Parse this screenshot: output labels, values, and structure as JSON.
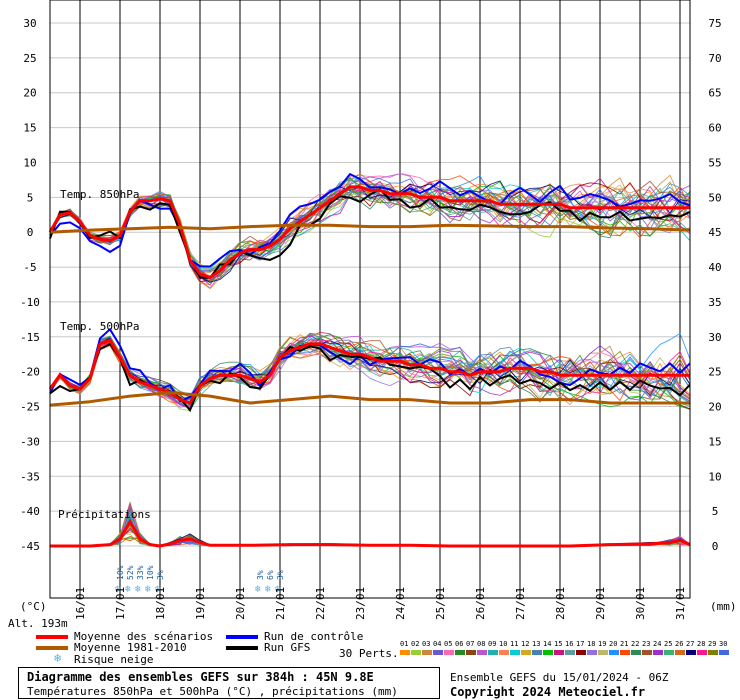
{
  "chart_data": {
    "type": "line",
    "title": "Diagramme des ensembles GEFS sur 384h : 45N 9.8E",
    "subtitle": "Températures 850hPa et 500hPa (°C) , précipitations (mm)",
    "x_ticks": [
      "16/01",
      "17/01",
      "18/01",
      "19/01",
      "20/01",
      "21/01",
      "22/01",
      "23/01",
      "24/01",
      "25/01",
      "26/01",
      "27/01",
      "28/01",
      "29/01",
      "30/01",
      "31/01"
    ],
    "y_left_ticks": [
      30,
      25,
      20,
      15,
      10,
      5,
      0,
      -5,
      -10,
      -15,
      -20,
      -25,
      -30,
      -35,
      -40,
      -45
    ],
    "y_right_ticks": [
      75,
      70,
      65,
      60,
      55,
      50,
      45,
      40,
      35,
      30,
      25,
      20,
      15,
      10,
      5,
      0
    ],
    "y_left_label": "(°C)",
    "y_right_label": "(mm)",
    "altitude": "Alt. 193m",
    "panel_labels": [
      "Temp. 850hPa",
      "Temp. 500hPa",
      "Précipitations"
    ],
    "x_range_hours": [
      0,
      384
    ],
    "series": [
      {
        "name": "Moyenne des scénarios",
        "panel": "Temp. 850hPa",
        "color": "#ff0000",
        "t": [
          0,
          6,
          12,
          18,
          24,
          30,
          36,
          42,
          48,
          54,
          60,
          66,
          72,
          78,
          84,
          90,
          96,
          102,
          108,
          114,
          120,
          126,
          132,
          138,
          144,
          150,
          156,
          162,
          168,
          174,
          180,
          186,
          192,
          198,
          204,
          210,
          216,
          222,
          228,
          234,
          240,
          246,
          252,
          258,
          264,
          270,
          276,
          282,
          288,
          294,
          300,
          306,
          312,
          318,
          324,
          330,
          336,
          342,
          348,
          354,
          360,
          366,
          372,
          378,
          384
        ],
        "v": [
          0,
          2.5,
          2.8,
          1.5,
          -0.5,
          -1,
          -1.2,
          -0.5,
          3,
          4.5,
          4.5,
          4.8,
          4.5,
          1,
          -4,
          -6,
          -6.5,
          -5.5,
          -4,
          -3,
          -2.5,
          -2.5,
          -2,
          -1,
          0.5,
          1.5,
          2.5,
          3.5,
          4.5,
          5.5,
          6.5,
          6.5,
          6,
          6,
          5.5,
          5.5,
          5.5,
          5,
          5,
          5,
          4.5,
          4.5,
          4.5,
          4.5,
          4.5,
          4,
          4,
          4,
          4,
          4,
          4,
          4,
          3.5,
          3.5,
          3.5,
          3.5,
          3.5,
          3.5,
          3.5,
          3.5,
          3.5,
          3.5,
          3.5,
          3.5,
          3.5
        ]
      },
      {
        "name": "Moyenne 1981-2010",
        "panel": "Temp. 850hPa",
        "color": "#b05a00",
        "t": [
          0,
          24,
          48,
          72,
          96,
          120,
          144,
          168,
          192,
          216,
          240,
          264,
          288,
          312,
          336,
          360,
          384
        ],
        "v": [
          0,
          0.3,
          0.5,
          0.7,
          0.5,
          0.8,
          1,
          1,
          0.8,
          0.8,
          1,
          0.9,
          0.8,
          0.8,
          0.6,
          0.5,
          0.3
        ]
      },
      {
        "name": "Moyenne des scénarios",
        "panel": "Temp. 500hPa",
        "color": "#ff0000",
        "t": [
          0,
          6,
          12,
          18,
          24,
          30,
          36,
          42,
          48,
          54,
          60,
          66,
          72,
          78,
          84,
          90,
          96,
          102,
          108,
          114,
          120,
          126,
          132,
          138,
          144,
          150,
          156,
          162,
          168,
          174,
          180,
          186,
          192,
          198,
          204,
          210,
          216,
          222,
          228,
          234,
          240,
          246,
          252,
          258,
          264,
          270,
          276,
          282,
          288,
          294,
          300,
          306,
          312,
          318,
          324,
          330,
          336,
          342,
          348,
          354,
          360,
          366,
          372,
          378,
          384
        ],
        "v": [
          -22.5,
          -20.5,
          -22,
          -22.5,
          -21,
          -16,
          -15.5,
          -18,
          -20.5,
          -21.5,
          -22,
          -22.5,
          -23,
          -24,
          -24.5,
          -22,
          -21,
          -20.5,
          -20.5,
          -20.5,
          -21,
          -21.5,
          -20.5,
          -18,
          -17,
          -16.5,
          -16,
          -16,
          -16.5,
          -17,
          -17.5,
          -17.5,
          -18,
          -18.5,
          -18.5,
          -18.5,
          -19,
          -19,
          -19.5,
          -19.5,
          -20,
          -20,
          -20.5,
          -20,
          -20,
          -20,
          -19.5,
          -19.5,
          -19.5,
          -20,
          -20,
          -20.5,
          -20.5,
          -20.5,
          -20.5,
          -20.5,
          -20.5,
          -20.5,
          -20.5,
          -20.5,
          -20.5,
          -20.5,
          -20.5,
          -20.5,
          -20.5
        ]
      },
      {
        "name": "Moyenne 1981-2010",
        "panel": "Temp. 500hPa",
        "color": "#b05a00",
        "t": [
          0,
          24,
          48,
          72,
          96,
          120,
          144,
          168,
          192,
          216,
          240,
          264,
          288,
          312,
          336,
          360,
          384
        ],
        "v": [
          -24.8,
          -24.3,
          -23.5,
          -23,
          -23.5,
          -24.5,
          -24,
          -23.5,
          -24,
          -24,
          -24.5,
          -24.5,
          -24,
          -24,
          -24.5,
          -24.5,
          -24.5
        ]
      },
      {
        "name": "Moyenne des scénarios",
        "panel": "Précipitations",
        "color": "#ff0000",
        "t": [
          0,
          24,
          36,
          42,
          48,
          54,
          60,
          66,
          72,
          78,
          84,
          90,
          96,
          120,
          144,
          168,
          192,
          216,
          240,
          264,
          288,
          312,
          336,
          360,
          372,
          378,
          384
        ],
        "v": [
          0,
          0,
          0.2,
          1,
          3.5,
          1,
          0.2,
          0,
          0.3,
          0.8,
          1,
          0.5,
          0.1,
          0.1,
          0.2,
          0.2,
          0.1,
          0.1,
          0,
          0,
          0,
          0,
          0.2,
          0.3,
          0.5,
          0.8,
          0.2
        ]
      }
    ],
    "legend": [
      {
        "label": "Moyenne des scénarios",
        "color": "#ff0000"
      },
      {
        "label": "Moyenne 1981-2010",
        "color": "#b05a00"
      },
      {
        "label": "Run de contrôle",
        "color": "#0000ff"
      },
      {
        "label": "Run GFS",
        "color": "#000000"
      },
      {
        "label": "Risque neige",
        "color": "#9ad1f0"
      }
    ],
    "snow_risk": [
      {
        "label": "10%",
        "t": 42
      },
      {
        "label": "52%",
        "t": 48
      },
      {
        "label": "33%",
        "t": 54
      },
      {
        "label": "10%",
        "t": 60
      },
      {
        "label": "3%",
        "t": 66
      },
      {
        "label": "3%",
        "t": 126
      },
      {
        "label": "6%",
        "t": 132
      },
      {
        "label": "3%",
        "t": 138
      }
    ],
    "perts_label": "30 Perts.",
    "perts": [
      "01",
      "02",
      "03",
      "04",
      "05",
      "06",
      "07",
      "08",
      "09",
      "10",
      "11",
      "12",
      "13",
      "14",
      "15",
      "16",
      "17",
      "18",
      "19",
      "20",
      "21",
      "22",
      "23",
      "24",
      "25",
      "26",
      "27",
      "28",
      "29",
      "30"
    ],
    "pert_colors": [
      "#ff8c00",
      "#9acd32",
      "#cd853f",
      "#6a5acd",
      "#ff69b4",
      "#228b22",
      "#8b4513",
      "#ba55d3",
      "#20b2aa",
      "#ff7f50",
      "#00ced1",
      "#daa520",
      "#4682b4",
      "#00c000",
      "#c71585",
      "#5f9ea0",
      "#8b0000",
      "#9370db",
      "#bdb76b",
      "#1e90ff",
      "#ff4500",
      "#2e8b57",
      "#a0522d",
      "#9932cc",
      "#3cb371",
      "#d2691e",
      "#000080",
      "#ff1493",
      "#808000",
      "#4169e1"
    ]
  },
  "credits": {
    "line1": "Ensemble GEFS du 15/01/2024 - 06Z",
    "line2": "Copyright 2024 Meteociel.fr"
  }
}
